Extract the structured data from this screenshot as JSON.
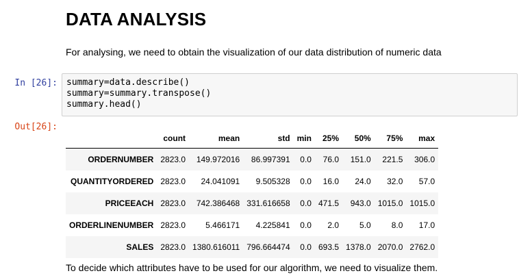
{
  "heading": "DATA ANALYSIS",
  "intro": "For analysing, we need to obtain the visualization of our data distribution of numeric data",
  "input_prompt": "In [26]:",
  "output_prompt": "Out[26]:",
  "code_lines": [
    "summary=data.describe()",
    "summary=summary.transpose()",
    "summary.head()"
  ],
  "table": {
    "columns": [
      "",
      "count",
      "mean",
      "std",
      "min",
      "25%",
      "50%",
      "75%",
      "max"
    ],
    "rows": [
      [
        "ORDERNUMBER",
        "2823.0",
        "149.972016",
        "86.997391",
        "0.0",
        "76.0",
        "151.0",
        "221.5",
        "306.0"
      ],
      [
        "QUANTITYORDERED",
        "2823.0",
        "24.041091",
        "9.505328",
        "0.0",
        "16.0",
        "24.0",
        "32.0",
        "57.0"
      ],
      [
        "PRICEEACH",
        "2823.0",
        "742.386468",
        "331.616658",
        "0.0",
        "471.5",
        "943.0",
        "1015.0",
        "1015.0"
      ],
      [
        "ORDERLINENUMBER",
        "2823.0",
        "5.466171",
        "4.225841",
        "0.0",
        "2.0",
        "5.0",
        "8.0",
        "17.0"
      ],
      [
        "SALES",
        "2823.0",
        "1380.616011",
        "796.664474",
        "0.0",
        "693.5",
        "1378.0",
        "2070.0",
        "2762.0"
      ]
    ]
  },
  "outro": "To decide which attributes have to be used for our algorithm, we need to visualize them."
}
